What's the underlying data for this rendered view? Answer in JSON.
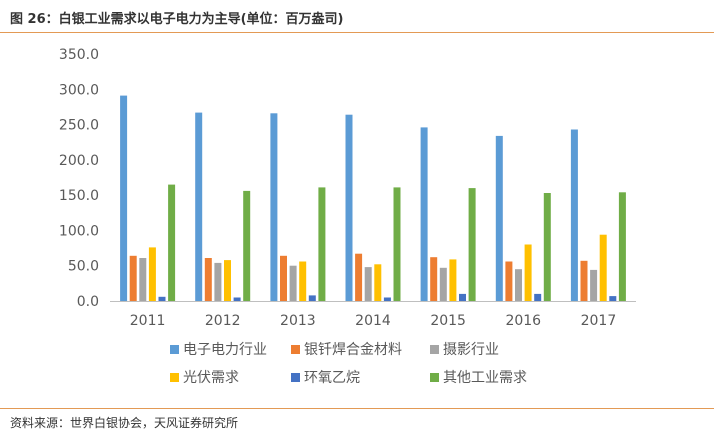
{
  "figure": {
    "title": "图 26：白银工业需求以电子电力为主导(单位：百万盎司)",
    "source": "资料来源：世界白银协会，天风证券研究所"
  },
  "chart_data": {
    "type": "bar",
    "categories": [
      "2011",
      "2012",
      "2013",
      "2014",
      "2015",
      "2016",
      "2017"
    ],
    "ylim": [
      0,
      350
    ],
    "yticks": [
      "0.0",
      "50.0",
      "100.0",
      "150.0",
      "200.0",
      "250.0",
      "300.0",
      "350.0"
    ],
    "grid": false,
    "legend_position": "bottom",
    "series": [
      {
        "name": "电子电力行业",
        "color": "#5b9bd5",
        "values": [
          291,
          267,
          266,
          264,
          246,
          234,
          243
        ]
      },
      {
        "name": "银钎焊合金材料",
        "color": "#ed7d31",
        "values": [
          64,
          61,
          64,
          67,
          62,
          56,
          57
        ]
      },
      {
        "name": "摄影行业",
        "color": "#a5a5a5",
        "values": [
          61,
          54,
          50,
          48,
          47,
          45,
          44
        ]
      },
      {
        "name": "光伏需求",
        "color": "#ffc000",
        "values": [
          76,
          58,
          56,
          52,
          59,
          80,
          94
        ]
      },
      {
        "name": "环氧乙烷",
        "color": "#4472c4",
        "values": [
          6,
          5,
          8,
          5,
          10,
          10,
          7
        ]
      },
      {
        "name": "其他工业需求",
        "color": "#70ad47",
        "values": [
          165,
          156,
          161,
          161,
          160,
          153,
          154
        ]
      }
    ]
  }
}
